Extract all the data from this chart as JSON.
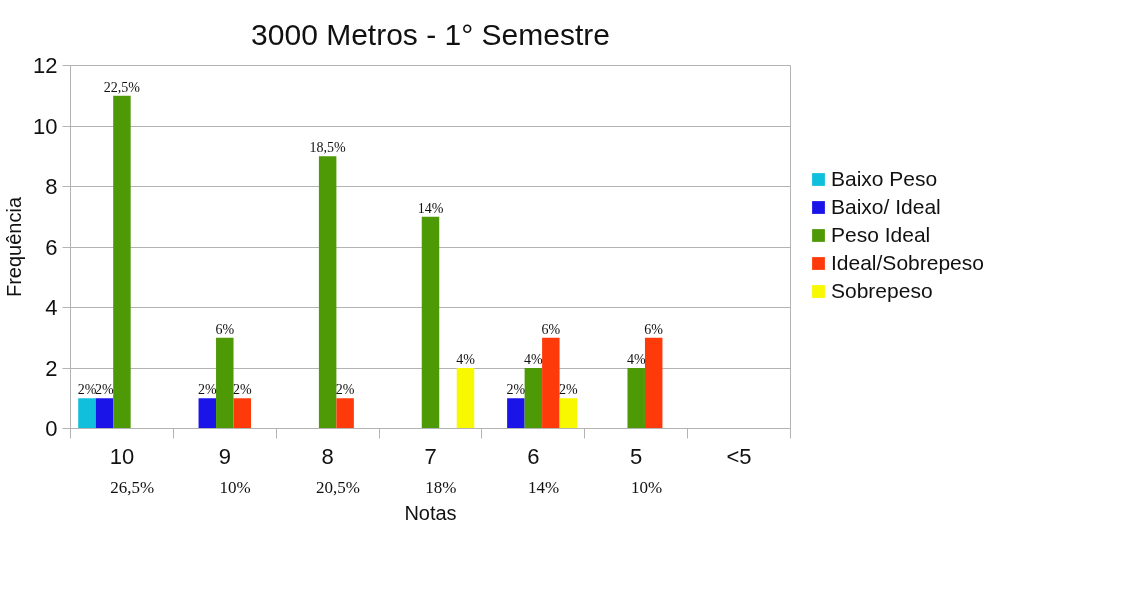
{
  "chart_data": {
    "type": "bar",
    "title": "3000 Metros - 1° Semestre",
    "xlabel": "Notas",
    "ylabel": "Frequência",
    "categories": [
      "10",
      "9",
      "8",
      "7",
      "6",
      "5",
      "<5"
    ],
    "series": [
      {
        "name": "Baixo Peso",
        "color": "#10bfdb",
        "values": [
          1,
          0,
          0,
          0,
          0,
          0,
          0
        ]
      },
      {
        "name": "Baixo/ Ideal",
        "color": "#1a14e8",
        "values": [
          1,
          1,
          0,
          0,
          1,
          0,
          0
        ]
      },
      {
        "name": "Peso Ideal",
        "color": "#4e9a06",
        "values": [
          11,
          3,
          9,
          7,
          2,
          2,
          0
        ]
      },
      {
        "name": "Ideal/Sobrepeso",
        "color": "#ff3a0a",
        "values": [
          0,
          1,
          1,
          0,
          3,
          3,
          0
        ]
      },
      {
        "name": "Sobrepeso",
        "color": "#f8f800",
        "values": [
          0,
          0,
          0,
          2,
          1,
          0,
          0
        ]
      }
    ],
    "annotations": [
      "2%",
      "2%",
      "22,5%",
      "2%",
      "6%",
      "2%",
      "18,5%",
      "2%",
      "14%",
      "4%",
      "2%",
      "4%",
      "6%",
      "2%",
      "4%",
      "6%",
      "26,5%",
      "10%",
      "20,5%",
      "18%",
      "14%",
      "10%"
    ],
    "ylim": [
      0,
      12
    ],
    "yticks": [
      0,
      2,
      4,
      6,
      8,
      10,
      12
    ],
    "grid": "y",
    "legend": "right"
  }
}
